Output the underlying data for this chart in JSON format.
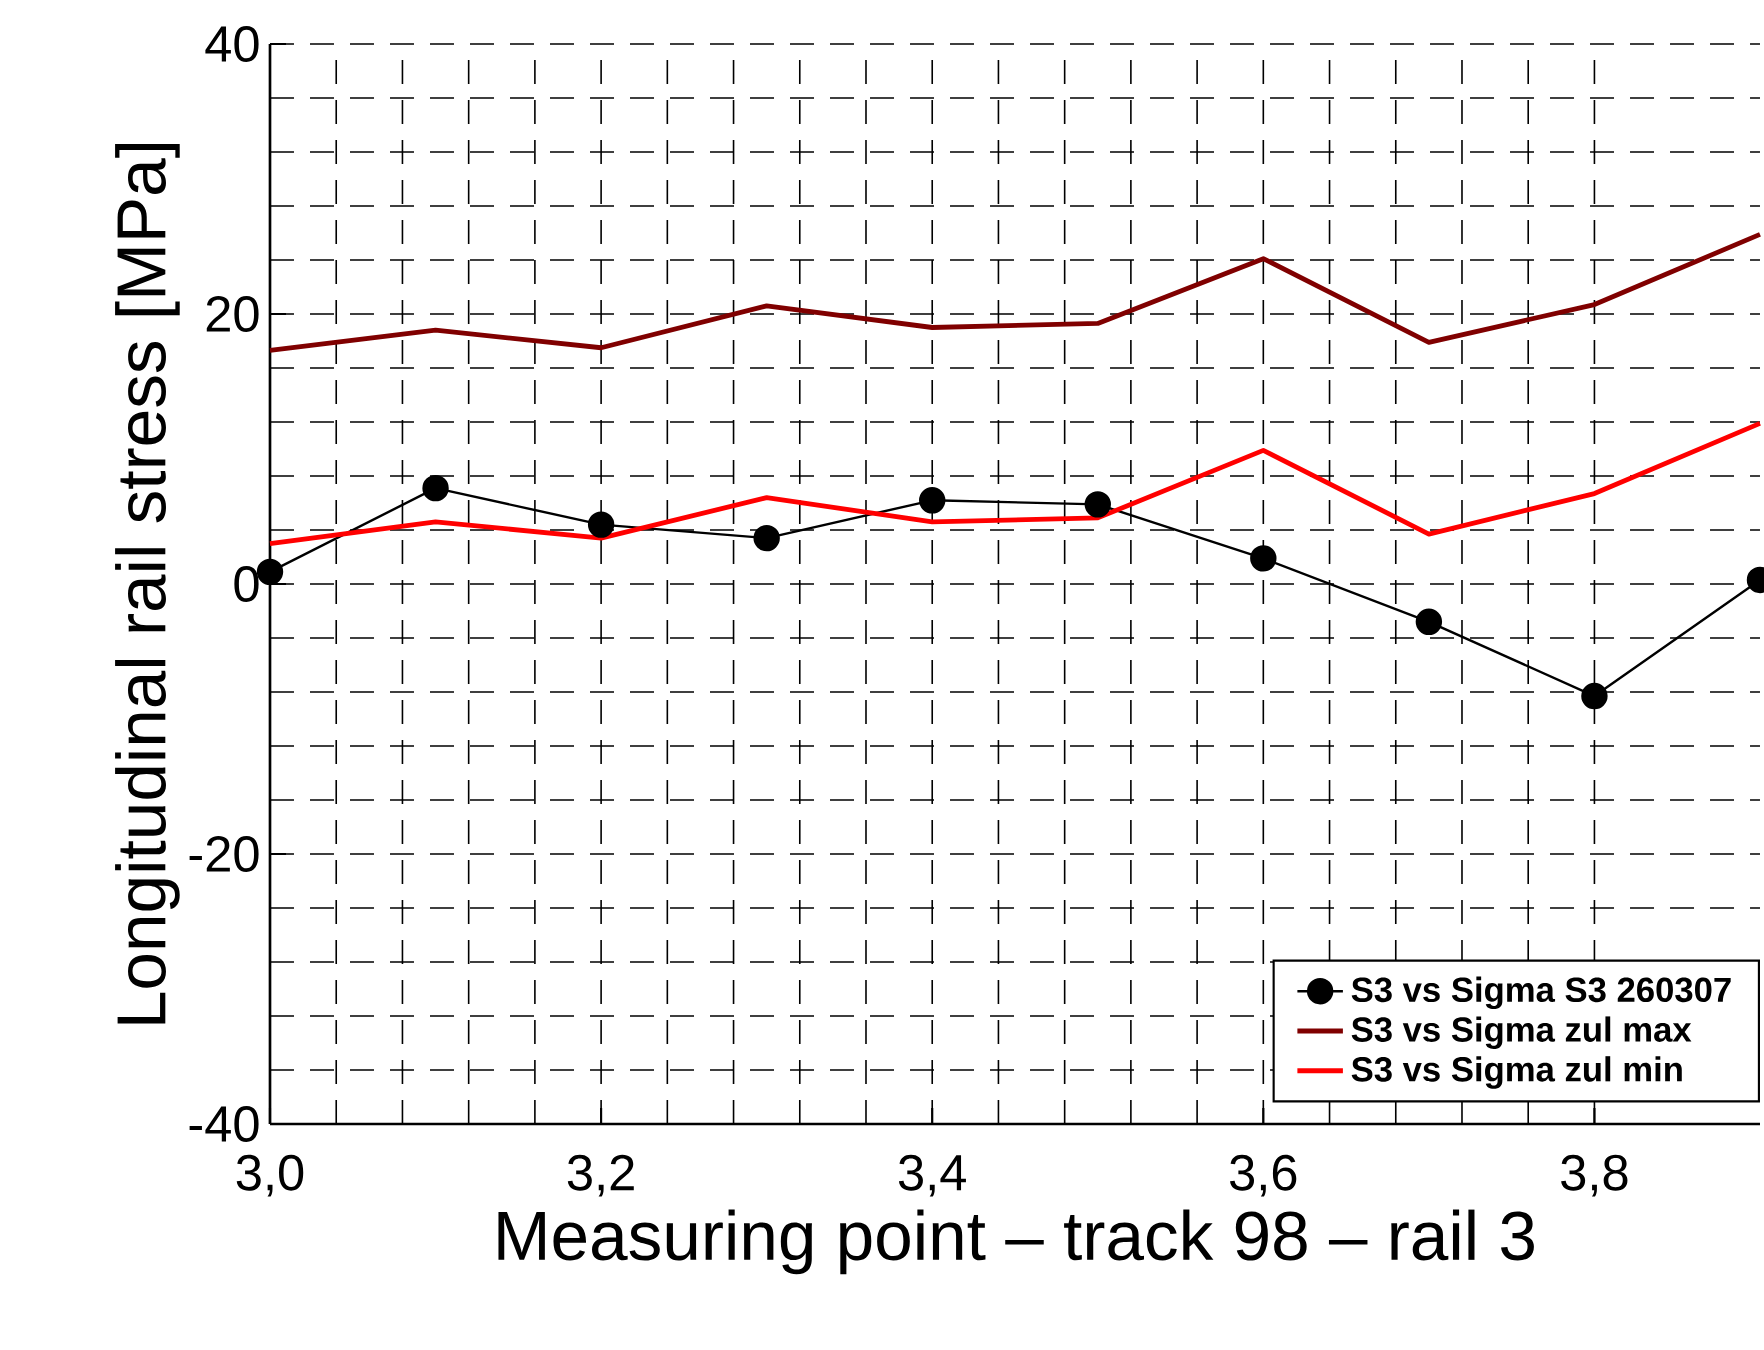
{
  "chart_data": {
    "type": "line",
    "xlabel": "Measuring point – track 98 – rail 3",
    "ylabel": "Longitudinal rail stress [MPa]",
    "x": [
      3.0,
      3.1,
      3.2,
      3.3,
      3.4,
      3.5,
      3.6,
      3.7,
      3.8,
      3.9
    ],
    "series": [
      {
        "name": "S3 vs Sigma S3 260307",
        "color": "#000000",
        "marker": "circle",
        "values": [
          0.9,
          7.1,
          4.4,
          3.4,
          6.2,
          5.9,
          1.9,
          -2.8,
          -8.3,
          0.3
        ]
      },
      {
        "name": "S3 vs Sigma zul max",
        "color": "#800000",
        "marker": "none",
        "values": [
          17.3,
          18.8,
          17.5,
          20.6,
          19.0,
          19.3,
          24.1,
          17.9,
          20.7,
          25.9
        ]
      },
      {
        "name": "S3 vs Sigma zul min",
        "color": "#ff0000",
        "marker": "none",
        "values": [
          3.0,
          4.6,
          3.4,
          6.4,
          4.6,
          4.9,
          9.9,
          3.7,
          6.7,
          11.9
        ]
      }
    ],
    "xlim": [
      3.0,
      3.9
    ],
    "xticks": [
      {
        "value": 3.0,
        "label": "3,0"
      },
      {
        "value": 3.2,
        "label": "3,2"
      },
      {
        "value": 3.4,
        "label": "3,4"
      },
      {
        "value": 3.6,
        "label": "3,6"
      },
      {
        "value": 3.8,
        "label": "3,8"
      }
    ],
    "ylim": [
      -40,
      40
    ],
    "yticks": [
      -40,
      -20,
      0,
      20,
      40
    ],
    "grid": true,
    "line_style": "solid",
    "legend": "bottom right"
  }
}
